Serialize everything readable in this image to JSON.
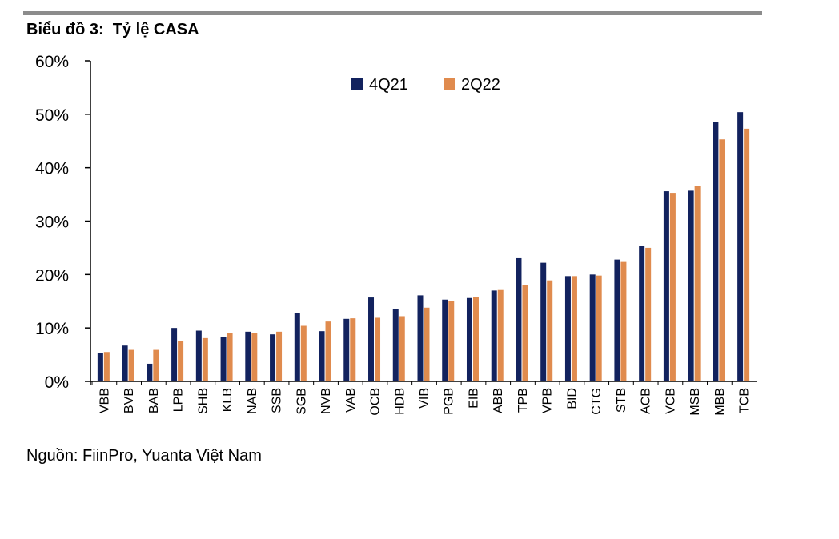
{
  "chart_data": {
    "type": "bar",
    "title": "Biểu đồ 3:  Tỷ lệ CASA",
    "xlabel": "",
    "ylabel": "",
    "ylim": [
      0,
      60
    ],
    "yticks": [
      "0%",
      "10%",
      "20%",
      "30%",
      "40%",
      "50%",
      "60%"
    ],
    "grid": false,
    "legend_position": "top-center",
    "categories": [
      "VBB",
      "BVB",
      "BAB",
      "LPB",
      "SHB",
      "KLB",
      "NAB",
      "SSB",
      "SGB",
      "NVB",
      "VAB",
      "OCB",
      "HDB",
      "VIB",
      "PGB",
      "EIB",
      "ABB",
      "TPB",
      "VPB",
      "BID",
      "CTG",
      "STB",
      "ACB",
      "VCB",
      "MSB",
      "MBB",
      "TCB"
    ],
    "series": [
      {
        "name": "4Q21",
        "color": "#12225e",
        "values": [
          5.3,
          6.7,
          3.3,
          10.0,
          9.5,
          8.3,
          9.3,
          8.8,
          12.8,
          9.4,
          11.7,
          15.7,
          13.5,
          16.1,
          15.3,
          15.6,
          17.0,
          23.2,
          22.2,
          19.7,
          20.0,
          22.8,
          25.4,
          35.6,
          35.7,
          48.6,
          50.4
        ]
      },
      {
        "name": "2Q22",
        "color": "#e08b4e",
        "values": [
          5.5,
          5.9,
          5.9,
          7.6,
          8.1,
          9.0,
          9.1,
          9.3,
          10.4,
          11.2,
          11.8,
          11.9,
          12.2,
          13.8,
          15.0,
          15.8,
          17.1,
          18.0,
          18.9,
          19.7,
          19.8,
          22.5,
          25.0,
          35.3,
          36.6,
          45.3,
          47.3
        ]
      }
    ]
  },
  "source_note": "Nguồn: FiinPro, Yuanta Việt Nam"
}
